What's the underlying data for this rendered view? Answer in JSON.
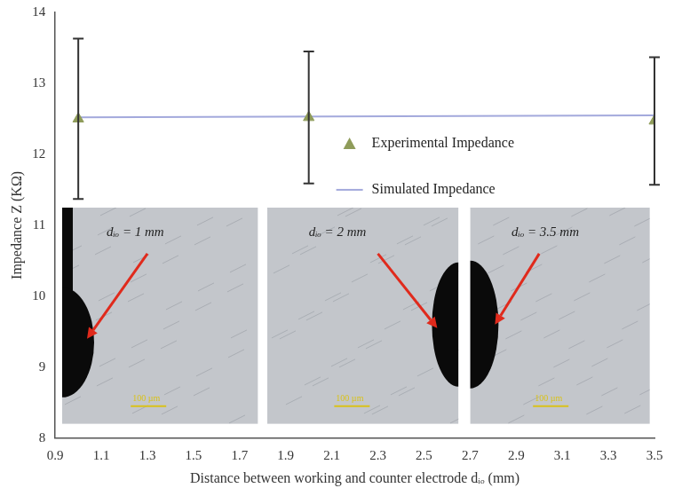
{
  "chart_data": {
    "type": "scatter",
    "x_label": "Distance between working and counter electrode dᵢₒ (mm)",
    "y_label": "Impedance Z (KΩ)",
    "series": [
      {
        "name": "Experimental Impedance",
        "type": "scatter",
        "marker": "triangle",
        "color": "#8f9c5a",
        "x": [
          1,
          2,
          3.5
        ],
        "values": [
          12.5,
          12.52,
          12.47
        ],
        "error": [
          1.13,
          0.93,
          0.9
        ]
      },
      {
        "name": "Simulated Impedance",
        "type": "line",
        "line_style": "solid",
        "color": "#a3a9dc",
        "x": [
          1,
          3.5
        ],
        "values": [
          12.52,
          12.55
        ]
      }
    ],
    "xlim": [
      0.9,
      3.5
    ],
    "xticks": [
      0.9,
      1.1,
      1.3,
      1.5,
      1.7,
      1.9,
      2.1,
      2.3,
      2.5,
      2.7,
      2.9,
      3.1,
      3.3,
      3.5
    ],
    "ylim": [
      8,
      14
    ],
    "yticks": [
      8,
      9,
      10,
      11,
      12,
      13,
      14
    ],
    "grid": false,
    "legend": "right",
    "annotations": [
      "dᵢₒ = 1 mm",
      "dᵢₒ = 2 mm",
      "dᵢₒ = 3.5 mm"
    ],
    "scale_bar_label": "100 µm"
  }
}
